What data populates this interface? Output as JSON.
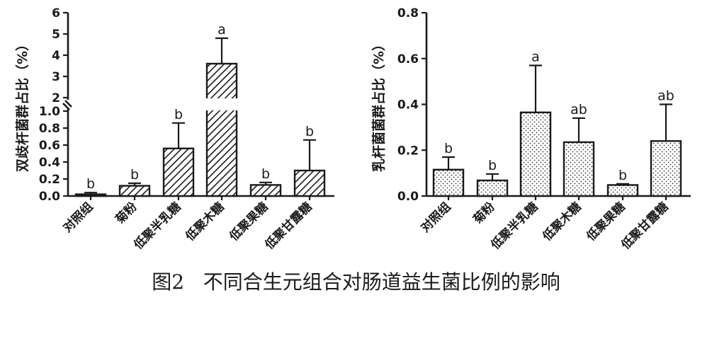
{
  "caption": "图2   不同合生元组合对肠道益生菌比例的影响",
  "chart_data": [
    {
      "type": "bar",
      "ylabel": "双歧杆菌群占比（%）",
      "categories": [
        "对照组",
        "菊粉",
        "低聚半乳糖",
        "低聚木糖",
        "低聚果糖",
        "低聚甘露糖"
      ],
      "values": [
        0.02,
        0.12,
        0.56,
        3.6,
        0.13,
        0.3
      ],
      "error": [
        0.02,
        0.03,
        0.3,
        1.2,
        0.03,
        0.36
      ],
      "significance": [
        "b",
        "b",
        "b",
        "a",
        "b",
        "b"
      ],
      "broken_y_axis": true,
      "ylim_lower": [
        0,
        1.0
      ],
      "ylim_upper": [
        2,
        6
      ],
      "yticks_lower": [
        "0.0",
        "0.2",
        "0.4",
        "0.6",
        "0.8",
        "1.0"
      ],
      "yticks_upper": [
        "2",
        "3",
        "4",
        "5",
        "6"
      ],
      "pattern": "diagonal-hatch"
    },
    {
      "type": "bar",
      "ylabel": "乳杆菌菌群占比（%）",
      "categories": [
        "对照组",
        "菊粉",
        "低聚半乳糖",
        "低聚木糖",
        "低聚果糖",
        "低聚甘露糖"
      ],
      "values": [
        0.115,
        0.068,
        0.365,
        0.235,
        0.048,
        0.24
      ],
      "error": [
        0.055,
        0.028,
        0.205,
        0.105,
        0.005,
        0.16
      ],
      "significance": [
        "b",
        "b",
        "a",
        "ab",
        "b",
        "ab"
      ],
      "ylim": [
        0,
        0.8
      ],
      "yticks": [
        "0.0",
        "0.2",
        "0.4",
        "0.6",
        "0.8"
      ],
      "pattern": "dots"
    }
  ]
}
